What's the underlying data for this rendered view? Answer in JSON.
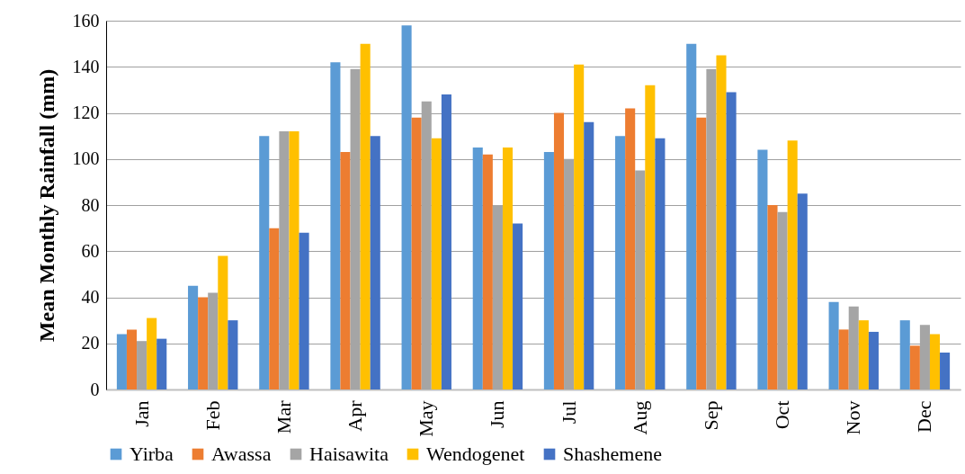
{
  "chart_data": {
    "type": "bar",
    "ylabel": "Mean Monthly Rainfall (mm)",
    "categories": [
      "Jan",
      "Feb",
      "Mar",
      "Apr",
      "May",
      "Jun",
      "Jul",
      "Aug",
      "Sep",
      "Oct",
      "Nov",
      "Dec"
    ],
    "series": [
      {
        "name": "Yirba",
        "color": "#5b9bd5",
        "values": [
          24,
          45,
          110,
          142,
          158,
          105,
          103,
          110,
          150,
          104,
          38,
          30
        ]
      },
      {
        "name": "Awassa",
        "color": "#ed7d31",
        "values": [
          26,
          40,
          70,
          103,
          118,
          102,
          120,
          122,
          118,
          80,
          26,
          19
        ]
      },
      {
        "name": "Haisawita",
        "color": "#a5a5a5",
        "values": [
          21,
          42,
          112,
          139,
          125,
          80,
          100,
          95,
          139,
          77,
          36,
          28
        ]
      },
      {
        "name": "Wendogenet",
        "color": "#ffc000",
        "values": [
          31,
          58,
          112,
          150,
          109,
          105,
          141,
          132,
          145,
          108,
          30,
          24
        ]
      },
      {
        "name": "Shashemene",
        "color": "#4472c4",
        "values": [
          22,
          30,
          68,
          110,
          128,
          72,
          116,
          109,
          129,
          85,
          25,
          16
        ]
      }
    ],
    "ylim": [
      0,
      160
    ],
    "yticks": [
      0,
      20,
      40,
      60,
      80,
      100,
      120,
      140,
      160
    ],
    "grid": "y",
    "legend": "bottom"
  }
}
